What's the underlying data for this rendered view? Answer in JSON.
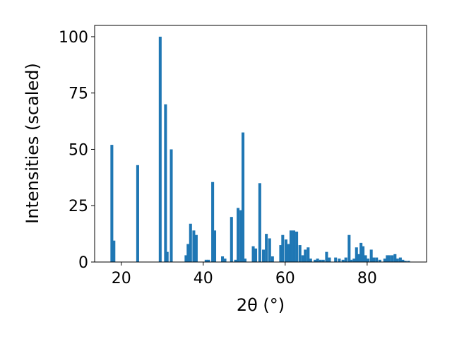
{
  "chart_data": {
    "type": "bar",
    "title": "",
    "xlabel": "2θ (°)",
    "ylabel": "Intensities (scaled)",
    "xlim": [
      13.5,
      94.5
    ],
    "ylim": [
      0,
      105
    ],
    "xticks": [
      20,
      40,
      60,
      80
    ],
    "yticks": [
      0,
      25,
      50,
      75,
      100
    ],
    "grid": false,
    "bar_color": "#1f77b4",
    "bar_width": 0.7,
    "x": [
      17.7,
      18.2,
      24.0,
      29.5,
      30.8,
      31.2,
      32.2,
      35.8,
      36.3,
      36.9,
      37.7,
      38.3,
      40.7,
      41.3,
      42.3,
      42.8,
      44.7,
      45.3,
      46.9,
      47.9,
      48.5,
      49.2,
      49.7,
      50.2,
      52.2,
      52.8,
      53.8,
      54.7,
      55.4,
      56.2,
      56.9,
      58.9,
      59.4,
      60.2,
      60.8,
      61.4,
      62.1,
      62.8,
      63.6,
      64.3,
      64.9,
      65.6,
      66.2,
      67.3,
      67.9,
      68.6,
      69.3,
      70.1,
      70.8,
      72.3,
      73.2,
      74.1,
      74.8,
      75.6,
      76.1,
      76.8,
      77.4,
      78.0,
      78.5,
      79.0,
      79.6,
      80.2,
      81.0,
      81.6,
      82.3,
      83.1,
      84.3,
      84.9,
      85.4,
      86.1,
      86.8,
      87.4,
      88.1,
      88.7,
      89.3,
      90.1
    ],
    "values": [
      52.0,
      9.5,
      43.0,
      100.0,
      70.0,
      4.5,
      50.0,
      3.0,
      8.0,
      17.0,
      14.0,
      12.0,
      1.0,
      1.0,
      35.5,
      14.0,
      2.5,
      1.5,
      20.0,
      1.0,
      24.0,
      23.0,
      57.5,
      1.5,
      7.0,
      6.0,
      35.0,
      5.5,
      12.5,
      10.5,
      2.5,
      7.5,
      12.0,
      10.0,
      8.0,
      14.0,
      14.0,
      13.5,
      7.5,
      3.0,
      5.5,
      6.5,
      1.5,
      1.0,
      1.5,
      1.0,
      1.0,
      4.5,
      2.0,
      2.0,
      1.5,
      1.0,
      2.0,
      12.0,
      1.0,
      1.5,
      6.5,
      3.5,
      8.5,
      7.0,
      3.0,
      1.5,
      5.5,
      2.0,
      2.0,
      1.0,
      1.5,
      3.0,
      3.0,
      3.0,
      3.5,
      1.5,
      2.0,
      1.0,
      0.5,
      0.5
    ]
  }
}
